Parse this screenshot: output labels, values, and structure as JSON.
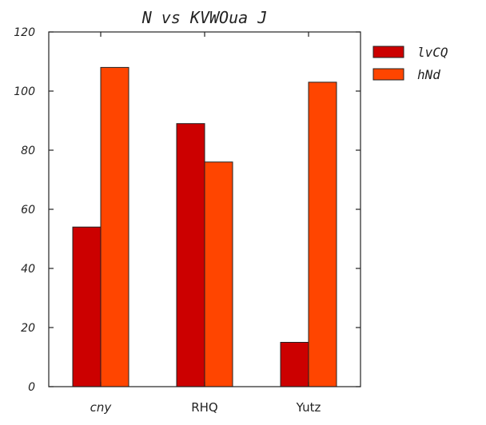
{
  "chart_data": {
    "type": "bar",
    "title": "N vs KVWOua J",
    "xlabel": "",
    "ylabel": "",
    "categories": [
      "cny",
      "RHQ",
      "Yutz"
    ],
    "category_italic": [
      true,
      false,
      false
    ],
    "series": [
      {
        "name": "lvCQ",
        "values": [
          54,
          89,
          15
        ],
        "color": "#cc0000"
      },
      {
        "name": "hNd",
        "values": [
          108,
          76,
          103
        ],
        "color": "#ff4500"
      }
    ],
    "ylim": [
      0,
      120
    ],
    "yticks": [
      0,
      20,
      40,
      60,
      80,
      100,
      120
    ],
    "grid": false,
    "legend_position": "right-outside-top"
  }
}
